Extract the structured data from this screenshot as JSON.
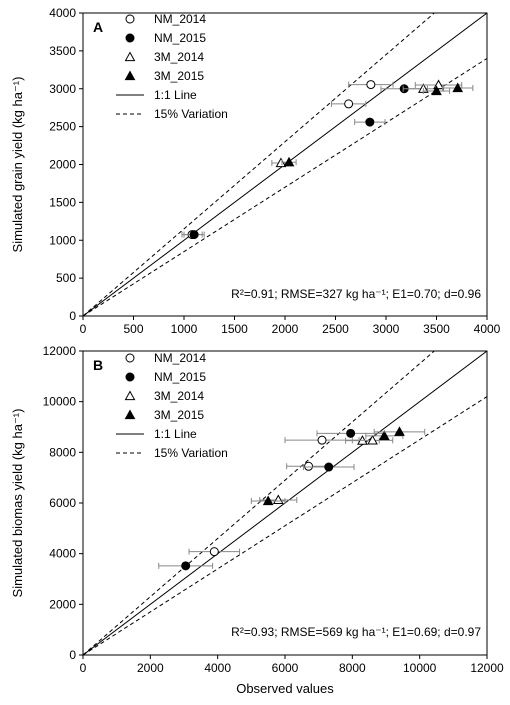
{
  "chart_data": [
    {
      "type": "scatter",
      "panel_label": "A",
      "ylabel": "Simulated grain yield (kg ha⁻¹)",
      "xlabel": "",
      "xlim": [
        0,
        4000
      ],
      "ylim": [
        0,
        4000
      ],
      "xticks": [
        0,
        500,
        1000,
        1500,
        2000,
        2500,
        3000,
        3500,
        4000
      ],
      "yticks": [
        0,
        500,
        1000,
        1500,
        2000,
        2500,
        3000,
        3500,
        4000
      ],
      "legend_placement": "top-left",
      "legend": [
        {
          "label": "NM_2014",
          "marker": "circle-open"
        },
        {
          "label": "NM_2015",
          "marker": "circle-filled"
        },
        {
          "label": "3M_2014",
          "marker": "triangle-open"
        },
        {
          "label": "3M_2015",
          "marker": "triangle-filled"
        },
        {
          "label": "1:1 Line",
          "line": "solid"
        },
        {
          "label": "15% Variation",
          "line": "dashed"
        }
      ],
      "series": [
        {
          "name": "NM_2014",
          "marker": "circle-open",
          "points": [
            {
              "x": 1080,
              "y": 1075,
              "xerr": 100
            },
            {
              "x": 2630,
              "y": 2800,
              "xerr": 170
            },
            {
              "x": 2850,
              "y": 3055,
              "xerr": 220
            }
          ]
        },
        {
          "name": "NM_2015",
          "marker": "circle-filled",
          "points": [
            {
              "x": 1100,
              "y": 1075,
              "xerr": 100
            },
            {
              "x": 2840,
              "y": 2560,
              "xerr": 150
            },
            {
              "x": 3180,
              "y": 3000,
              "xerr": 230
            }
          ]
        },
        {
          "name": "3M_2014",
          "marker": "triangle-open",
          "points": [
            {
              "x": 1960,
              "y": 2020,
              "xerr": 90
            },
            {
              "x": 3370,
              "y": 3000,
              "xerr": 200
            },
            {
              "x": 3520,
              "y": 3050,
              "xerr": 230
            }
          ]
        },
        {
          "name": "3M_2015",
          "marker": "triangle-filled",
          "points": [
            {
              "x": 2040,
              "y": 2030,
              "xerr": 70
            },
            {
              "x": 3500,
              "y": 2970,
              "xerr": 130
            },
            {
              "x": 3710,
              "y": 3010,
              "xerr": 150
            }
          ]
        }
      ],
      "reference_lines": [
        {
          "label": "1:1 Line",
          "slope": 1.0,
          "style": "solid"
        },
        {
          "label": "15% Variation",
          "slope": 1.15,
          "style": "dashed"
        },
        {
          "label": "15% Variation",
          "slope": 0.85,
          "style": "dashed"
        }
      ],
      "stats_text": "R²=0.91; RMSE=327 kg ha⁻¹; E1=0.70; d=0.96"
    },
    {
      "type": "scatter",
      "panel_label": "B",
      "ylabel": "Simulated biomas yield (kg ha⁻¹)",
      "xlabel": "Observed values",
      "xlim": [
        0,
        12000
      ],
      "ylim": [
        0,
        12000
      ],
      "xticks": [
        0,
        2000,
        4000,
        6000,
        8000,
        10000,
        12000
      ],
      "yticks": [
        0,
        2000,
        4000,
        6000,
        8000,
        10000,
        12000
      ],
      "legend_placement": "top-left",
      "legend": [
        {
          "label": "NM_2014",
          "marker": "circle-open"
        },
        {
          "label": "NM_2015",
          "marker": "circle-filled"
        },
        {
          "label": "3M_2014",
          "marker": "triangle-open"
        },
        {
          "label": "3M_2015",
          "marker": "triangle-filled"
        },
        {
          "label": "1:1 Line",
          "line": "solid"
        },
        {
          "label": "15% Variation",
          "line": "dashed"
        }
      ],
      "series": [
        {
          "name": "NM_2014",
          "marker": "circle-open",
          "points": [
            {
              "x": 3900,
              "y": 4080,
              "xerr": 750
            },
            {
              "x": 6700,
              "y": 7450,
              "xerr": 650
            },
            {
              "x": 7100,
              "y": 8480,
              "xerr": 1100
            }
          ]
        },
        {
          "name": "NM_2015",
          "marker": "circle-filled",
          "points": [
            {
              "x": 3050,
              "y": 3520,
              "xerr": 800
            },
            {
              "x": 7300,
              "y": 7420,
              "xerr": 750
            },
            {
              "x": 7950,
              "y": 8750,
              "xerr": 1000
            }
          ]
        },
        {
          "name": "3M_2014",
          "marker": "triangle-open",
          "points": [
            {
              "x": 5800,
              "y": 6120,
              "xerr": 550
            },
            {
              "x": 8300,
              "y": 8460,
              "xerr": 500
            },
            {
              "x": 8600,
              "y": 8470,
              "xerr": 600
            }
          ]
        },
        {
          "name": "3M_2015",
          "marker": "triangle-filled",
          "points": [
            {
              "x": 5500,
              "y": 6080,
              "xerr": 500
            },
            {
              "x": 8950,
              "y": 8650,
              "xerr": 550
            },
            {
              "x": 9400,
              "y": 8810,
              "xerr": 750
            }
          ]
        }
      ],
      "reference_lines": [
        {
          "label": "1:1 Line",
          "slope": 1.0,
          "style": "solid"
        },
        {
          "label": "15% Variation",
          "slope": 1.15,
          "style": "dashed"
        },
        {
          "label": "15% Variation",
          "slope": 0.85,
          "style": "dashed"
        }
      ],
      "stats_text": "R²=0.93; RMSE=569 kg ha⁻¹; E1=0.69; d=0.97"
    }
  ]
}
